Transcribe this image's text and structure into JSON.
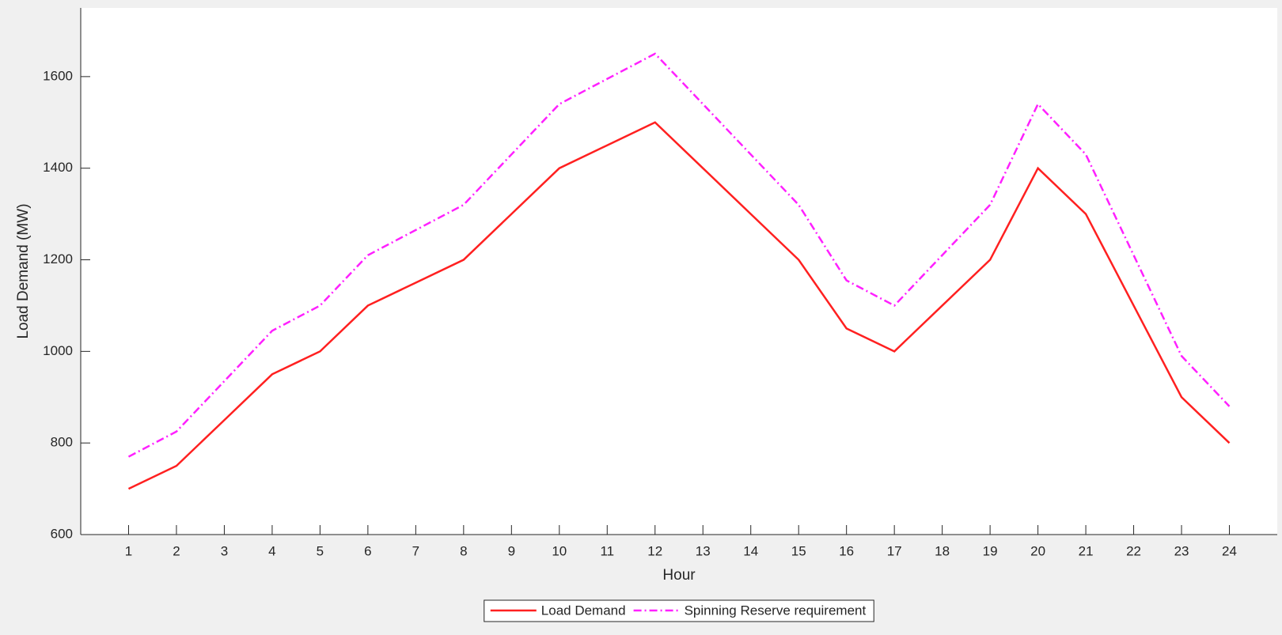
{
  "chart_data": {
    "type": "line",
    "xlabel": "Hour",
    "ylabel": "Load Demand (MW)",
    "x": [
      1,
      2,
      3,
      4,
      5,
      6,
      7,
      8,
      9,
      10,
      11,
      12,
      13,
      14,
      15,
      16,
      17,
      18,
      19,
      20,
      21,
      22,
      23,
      24
    ],
    "series": [
      {
        "name": "Load Demand",
        "color": "#ff2020",
        "dash": "solid",
        "values": [
          700,
          750,
          850,
          950,
          1000,
          1100,
          1150,
          1200,
          1300,
          1400,
          1450,
          1500,
          1400,
          1300,
          1200,
          1050,
          1000,
          1100,
          1200,
          1400,
          1300,
          1100,
          900,
          800
        ]
      },
      {
        "name": "Spinning Reserve requirement",
        "color": "#ff20ff",
        "dash": "dashdot",
        "values": [
          770,
          825,
          935,
          1045,
          1100,
          1210,
          1265,
          1320,
          1430,
          1540,
          1595,
          1650,
          1540,
          1430,
          1320,
          1155,
          1100,
          1210,
          1320,
          1540,
          1430,
          1210,
          990,
          880
        ]
      }
    ],
    "xlim": [
      0,
      25
    ],
    "xticks": [
      1,
      2,
      3,
      4,
      5,
      6,
      7,
      8,
      9,
      10,
      11,
      12,
      13,
      14,
      15,
      16,
      17,
      18,
      19,
      20,
      21,
      22,
      23,
      24
    ],
    "ylim": [
      600,
      1750
    ],
    "yticks": [
      600,
      800,
      1000,
      1200,
      1400,
      1600
    ],
    "legend": "bottom"
  }
}
